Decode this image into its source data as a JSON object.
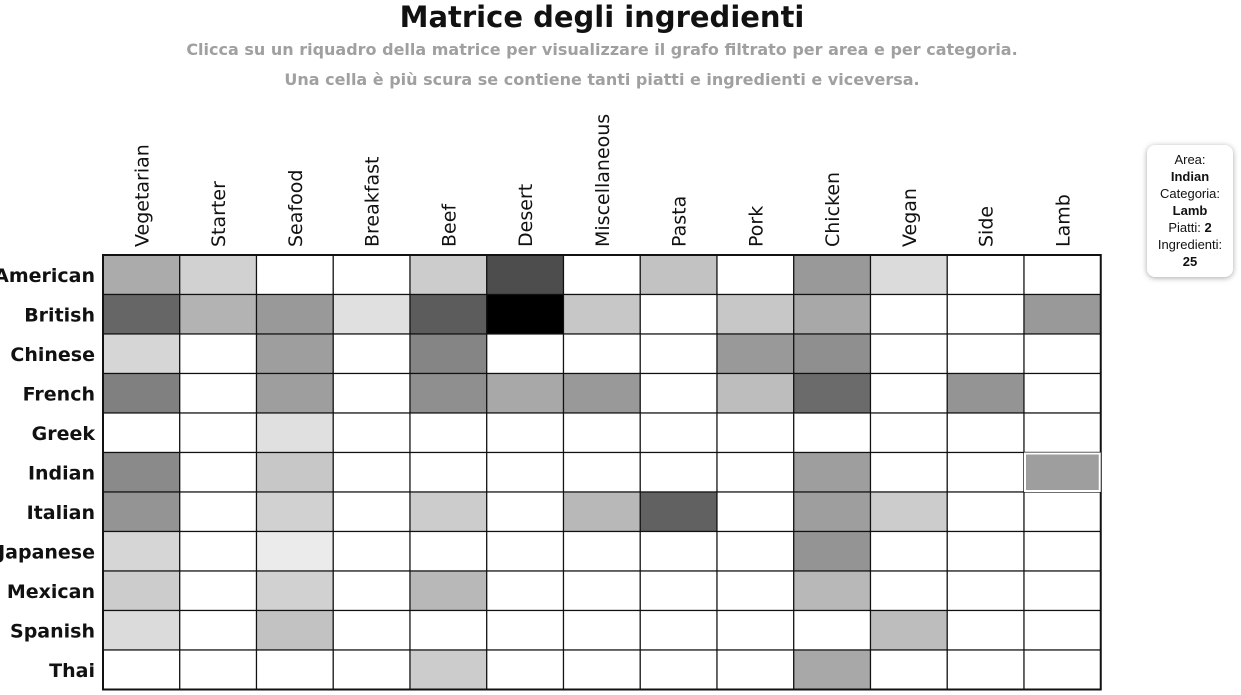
{
  "title": "Matrice degli ingredienti",
  "subtitle_line1": "Clicca su un riquadro della matrice per visualizzare il grafo filtrato per area e per categoria.",
  "subtitle_line2": "Una cella è più scura se contiene tanti piatti e ingredienti e viceversa.",
  "tooltip": {
    "area_label": "Area:",
    "area_value": "Indian",
    "category_label": "Categoria:",
    "category_value": "Lamb",
    "dishes_label": "Piatti:",
    "dishes_value": "2",
    "ingredients_label": "Ingredienti:",
    "ingredients_value": "25"
  },
  "chart_data": {
    "type": "heatmap",
    "x_categories": [
      "Vegetarian",
      "Starter",
      "Seafood",
      "Breakfast",
      "Beef",
      "Desert",
      "Miscellaneous",
      "Pasta",
      "Pork",
      "Chicken",
      "Vegan",
      "Side",
      "Lamb"
    ],
    "y_categories": [
      "American",
      "British",
      "Chinese",
      "French",
      "Greek",
      "Indian",
      "Italian",
      "Japanese",
      "Mexican",
      "Spanish",
      "Thai"
    ],
    "intensity_scale": "0 = white (empty), 1 = black",
    "values": [
      [
        0.33,
        0.18,
        0,
        0,
        0.2,
        0.7,
        0,
        0.24,
        0,
        0.4,
        0.14,
        0,
        0
      ],
      [
        0.6,
        0.3,
        0.4,
        0.12,
        0.64,
        1.0,
        0.22,
        0,
        0.22,
        0.34,
        0,
        0,
        0.4
      ],
      [
        0.16,
        0,
        0.38,
        0,
        0.48,
        0,
        0,
        0,
        0.4,
        0.44,
        0,
        0,
        0
      ],
      [
        0.5,
        0,
        0.38,
        0,
        0.44,
        0.34,
        0.4,
        0,
        0.26,
        0.58,
        0,
        0.42,
        0
      ],
      [
        0,
        0,
        0.12,
        0,
        0,
        0,
        0,
        0,
        0,
        0,
        0,
        0,
        0
      ],
      [
        0.46,
        0,
        0.22,
        0,
        0,
        0,
        0,
        0,
        0,
        0.38,
        0,
        0,
        0.38
      ],
      [
        0.42,
        0,
        0.18,
        0,
        0.2,
        0,
        0.28,
        0.62,
        0,
        0.38,
        0.2,
        0,
        0
      ],
      [
        0.16,
        0,
        0.08,
        0,
        0,
        0,
        0,
        0,
        0,
        0.42,
        0,
        0,
        0
      ],
      [
        0.2,
        0,
        0.18,
        0,
        0.28,
        0,
        0,
        0,
        0,
        0.28,
        0,
        0,
        0
      ],
      [
        0.14,
        0,
        0.24,
        0,
        0,
        0,
        0,
        0,
        0,
        0,
        0.26,
        0,
        0
      ],
      [
        0,
        0,
        0,
        0,
        0.2,
        0,
        0,
        0,
        0,
        0.34,
        0,
        0,
        0
      ]
    ],
    "highlighted_cell": {
      "row": "Indian",
      "column": "Lamb"
    }
  }
}
